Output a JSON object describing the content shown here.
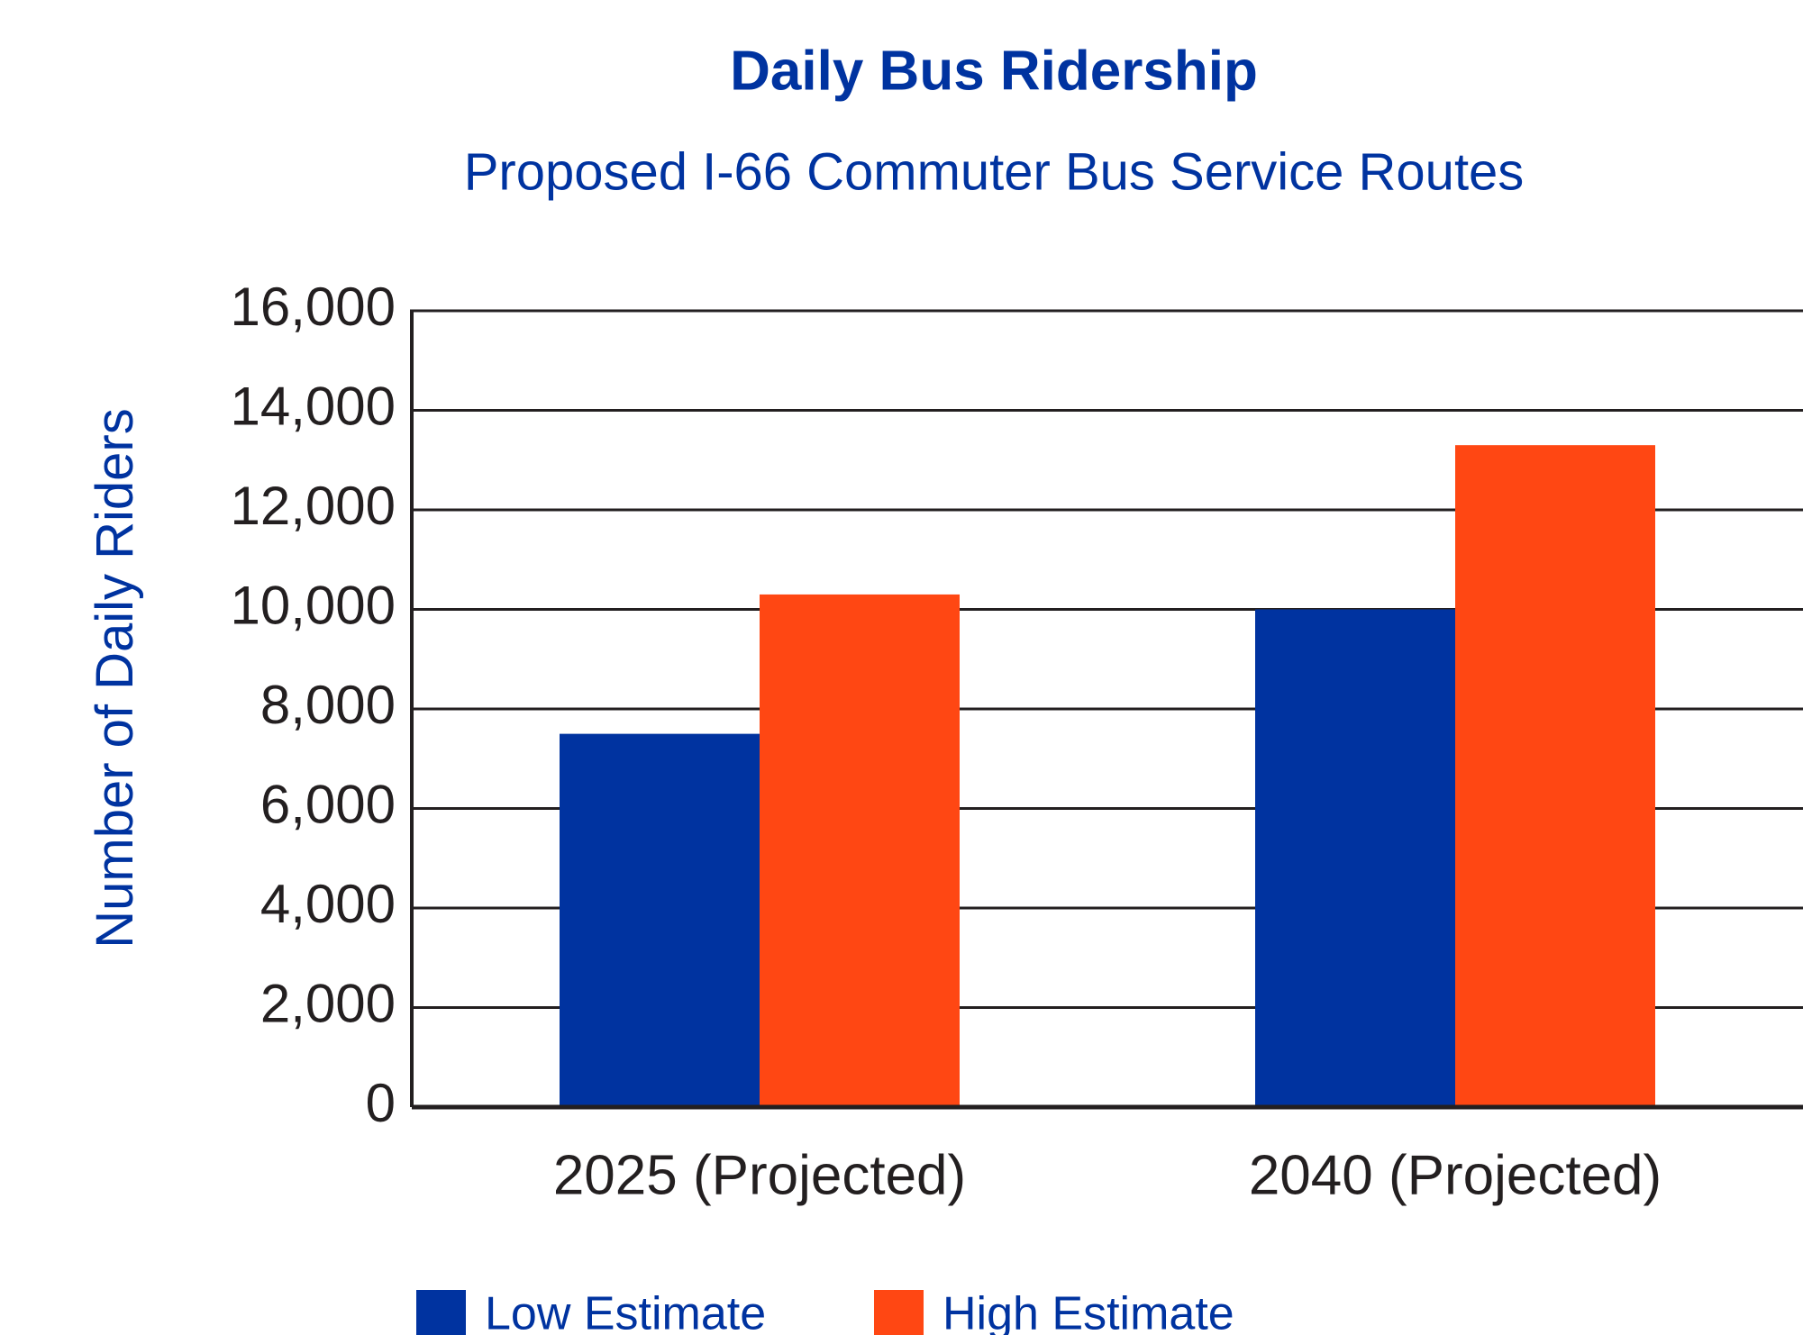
{
  "chart_data": {
    "type": "bar",
    "title": "Daily Bus Ridership",
    "subtitle": "Proposed I-66 Commuter Bus Service Routes",
    "y_label": "Number of Daily Riders",
    "categories": [
      "2025 (Projected)",
      "2040 (Projected)"
    ],
    "series": [
      {
        "name": "Low Estimate",
        "color": "#0033a0",
        "values": [
          7500,
          10000
        ]
      },
      {
        "name": "High Estimate",
        "color": "#ff4713",
        "values": [
          10300,
          13300
        ]
      }
    ],
    "ylim": [
      0,
      16000
    ],
    "yticks": [
      0,
      {
        "value": 2000,
        "label": "2,000"
      },
      {
        "value": 4000,
        "label": "4,000"
      },
      {
        "value": 6000,
        "label": "6,000"
      },
      {
        "value": 8000,
        "label": "8,000"
      },
      {
        "value": 10000,
        "label": "10,000"
      },
      {
        "value": 12000,
        "label": "12,000"
      },
      {
        "value": 14000,
        "label": "14,000"
      },
      {
        "value": 16000,
        "label": "16,000"
      }
    ],
    "grid": true,
    "legend": "bottom"
  }
}
